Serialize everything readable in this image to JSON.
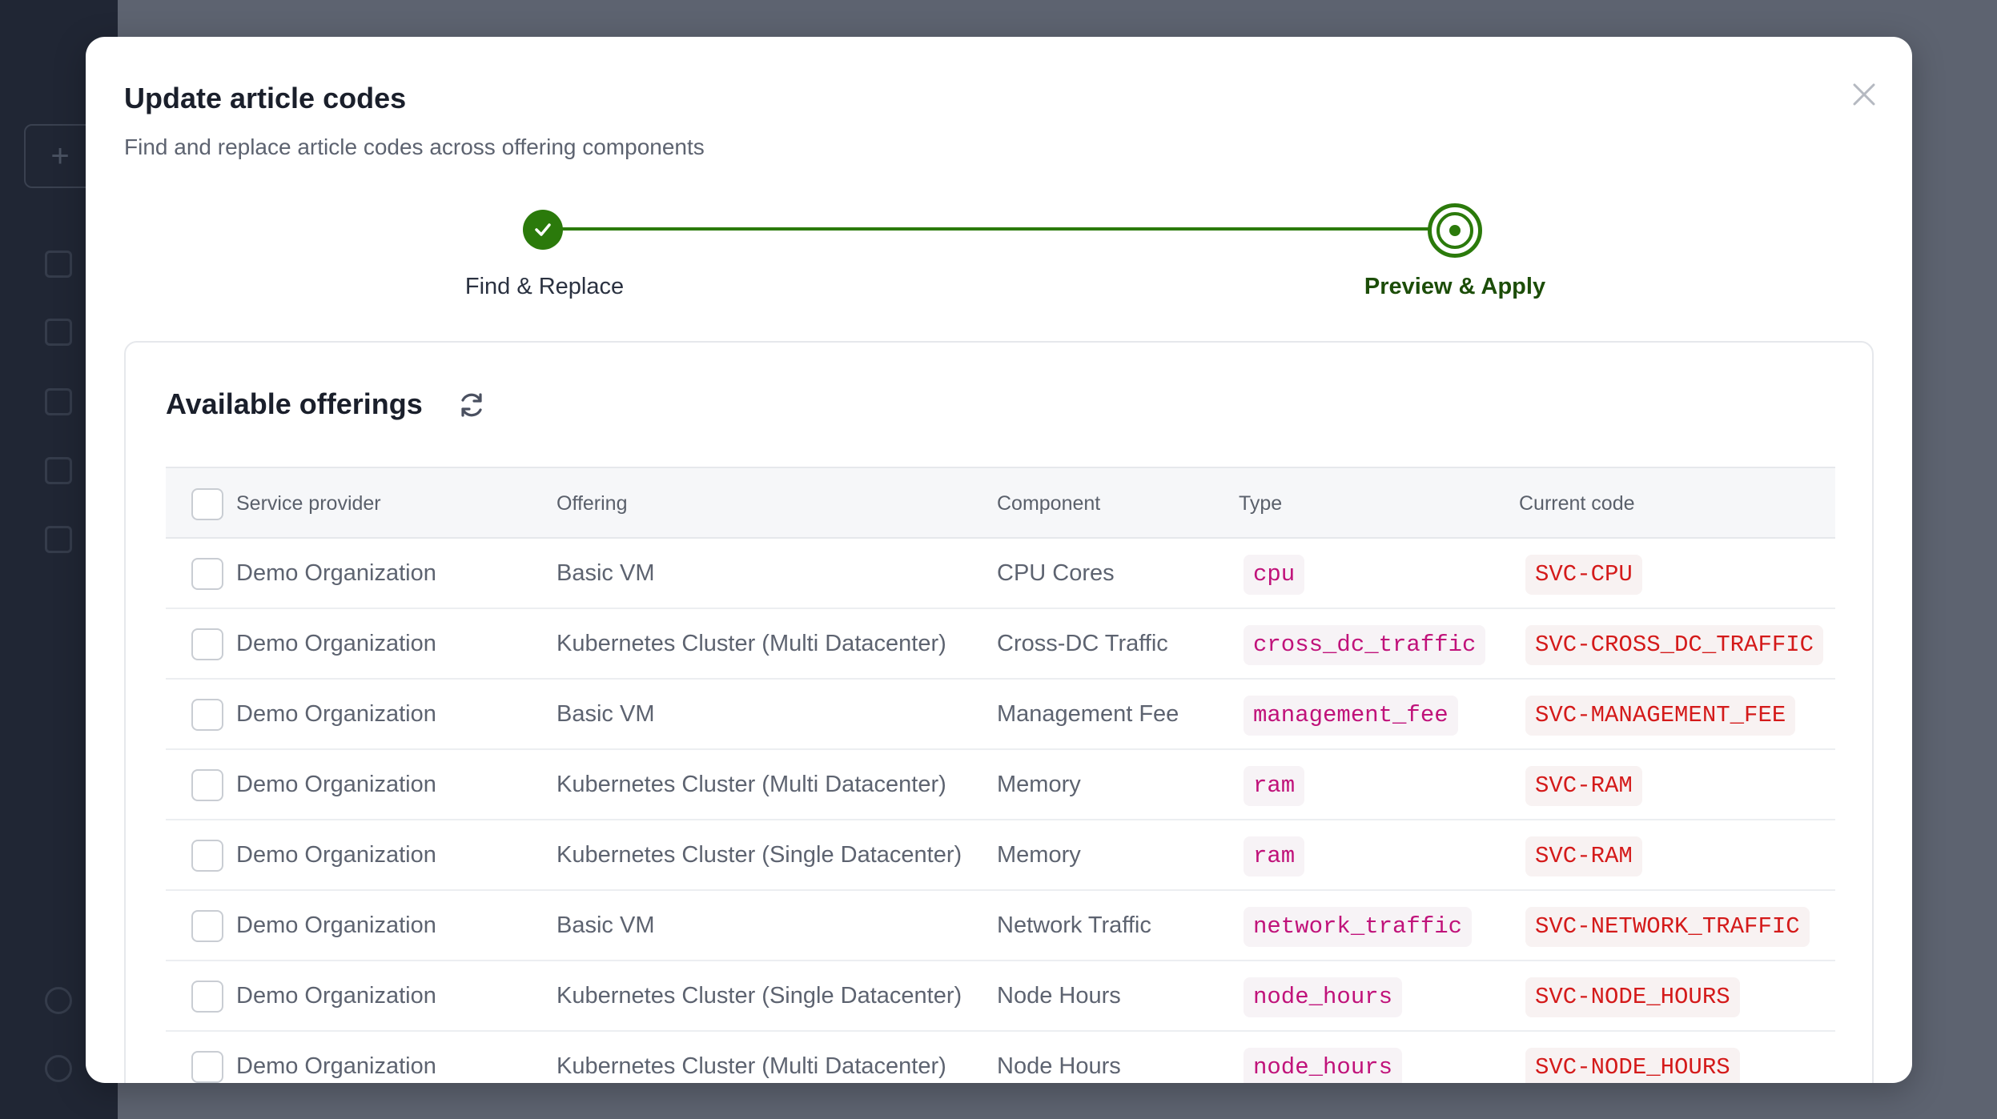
{
  "modal": {
    "title": "Update article codes",
    "subtitle": "Find and replace article codes across offering components"
  },
  "stepper": {
    "steps": [
      {
        "label": "Find & Replace",
        "state": "completed"
      },
      {
        "label": "Preview & Apply",
        "state": "active"
      }
    ],
    "accent_color": "#2b7a0b"
  },
  "card": {
    "title": "Available offerings"
  },
  "table": {
    "headers": {
      "provider": "Service provider",
      "offering": "Offering",
      "component": "Component",
      "type": "Type",
      "current_code": "Current code"
    },
    "rows": [
      {
        "provider": "Demo Organization",
        "offering": "Basic VM",
        "component": "CPU Cores",
        "type": "cpu",
        "code": "SVC-CPU"
      },
      {
        "provider": "Demo Organization",
        "offering": "Kubernetes Cluster (Multi Datacenter)",
        "component": "Cross-DC Traffic",
        "type": "cross_dc_traffic",
        "code": "SVC-CROSS_DC_TRAFFIC"
      },
      {
        "provider": "Demo Organization",
        "offering": "Basic VM",
        "component": "Management Fee",
        "type": "management_fee",
        "code": "SVC-MANAGEMENT_FEE"
      },
      {
        "provider": "Demo Organization",
        "offering": "Kubernetes Cluster (Multi Datacenter)",
        "component": "Memory",
        "type": "ram",
        "code": "SVC-RAM"
      },
      {
        "provider": "Demo Organization",
        "offering": "Kubernetes Cluster (Single Datacenter)",
        "component": "Memory",
        "type": "ram",
        "code": "SVC-RAM"
      },
      {
        "provider": "Demo Organization",
        "offering": "Basic VM",
        "component": "Network Traffic",
        "type": "network_traffic",
        "code": "SVC-NETWORK_TRAFFIC"
      },
      {
        "provider": "Demo Organization",
        "offering": "Kubernetes Cluster (Single Datacenter)",
        "component": "Node Hours",
        "type": "node_hours",
        "code": "SVC-NODE_HOURS"
      },
      {
        "provider": "Demo Organization",
        "offering": "Kubernetes Cluster (Multi Datacenter)",
        "component": "Node Hours",
        "type": "node_hours",
        "code": "SVC-NODE_HOURS"
      }
    ]
  },
  "icons": {
    "close": "close-icon",
    "refresh": "refresh-icon",
    "check": "check-icon"
  }
}
